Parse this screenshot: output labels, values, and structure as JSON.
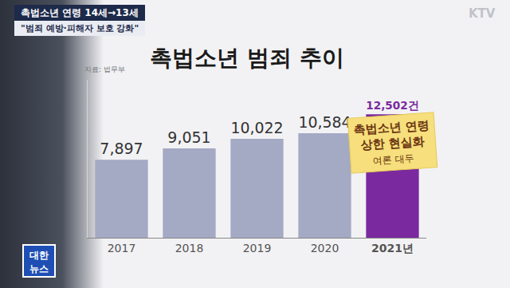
{
  "page": {
    "headline": "촉법소년 연령 14세→13세",
    "subhead": "\"범죄 예방·피해자 보호 강화\"",
    "logo": [
      "대한",
      "뉴스"
    ],
    "watermark": "KTV"
  },
  "chart_data": {
    "type": "bar",
    "title": "촉법소년 범죄 추이",
    "source": "자료: 법무부",
    "categories": [
      "2017",
      "2018",
      "2019",
      "2020",
      "2021년"
    ],
    "values": [
      7897,
      9051,
      10022,
      10584,
      12502
    ],
    "value_labels": [
      "7,897",
      "9,051",
      "10,022",
      "10,584",
      "12,502건"
    ],
    "colors": [
      "#a4a9c4",
      "#a4a9c4",
      "#a4a9c4",
      "#a4a9c4",
      "#7a2a9e"
    ],
    "ylim": [
      0,
      16000
    ],
    "data_labels": true,
    "tick_labels": "x",
    "grid": false,
    "note": {
      "lines": [
        "촉법소년 연령",
        "상한 현실화"
      ],
      "sub": "여론 대두"
    }
  }
}
